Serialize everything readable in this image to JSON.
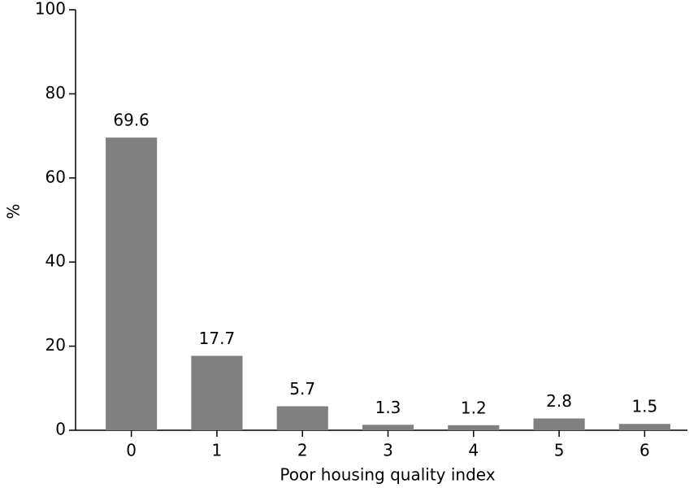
{
  "chart_data": {
    "type": "bar",
    "x_label": "Poor housing quality index",
    "y_label": "%",
    "categories": [
      "0",
      "1",
      "2",
      "3",
      "4",
      "5",
      "6"
    ],
    "values": [
      69.6,
      17.7,
      5.7,
      1.3,
      1.2,
      2.8,
      1.5
    ],
    "color": "#808080",
    "ylim": [
      0,
      100
    ],
    "yticks": [
      0,
      20,
      40,
      60,
      80,
      100
    ],
    "grid": false
  }
}
